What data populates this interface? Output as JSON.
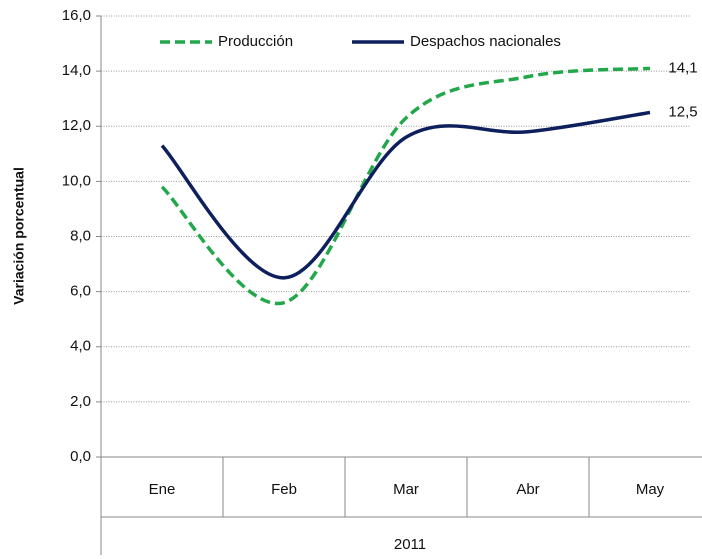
{
  "chart_data": {
    "type": "line",
    "categories": [
      "Ene",
      "Feb",
      "Mar",
      "Abr",
      "May"
    ],
    "group_label": "2011",
    "y_label": "Variación porcentual",
    "series": [
      {
        "name": "Producción",
        "color": "#22a84a",
        "dash": true,
        "values": [
          9.8,
          5.6,
          12.3,
          13.8,
          14.1
        ],
        "value_labels": [
          null,
          null,
          null,
          null,
          "14,1"
        ]
      },
      {
        "name": "Despachos nacionales",
        "color": "#0d1f5c",
        "dash": false,
        "values": [
          11.3,
          6.5,
          11.6,
          11.8,
          12.5
        ],
        "value_labels": [
          null,
          null,
          null,
          null,
          "12,5"
        ]
      }
    ],
    "ylim": [
      0,
      16
    ],
    "yticks": [
      {
        "value": 0,
        "label": "0,0"
      },
      {
        "value": 2,
        "label": "2,0"
      },
      {
        "value": 4,
        "label": "4,0"
      },
      {
        "value": 6,
        "label": "6,0"
      },
      {
        "value": 8,
        "label": "8,0"
      },
      {
        "value": 10,
        "label": "10,0"
      },
      {
        "value": 12,
        "label": "12,0"
      },
      {
        "value": 14,
        "label": "14,0"
      },
      {
        "value": 16,
        "label": "16,0"
      }
    ],
    "grid": true
  }
}
